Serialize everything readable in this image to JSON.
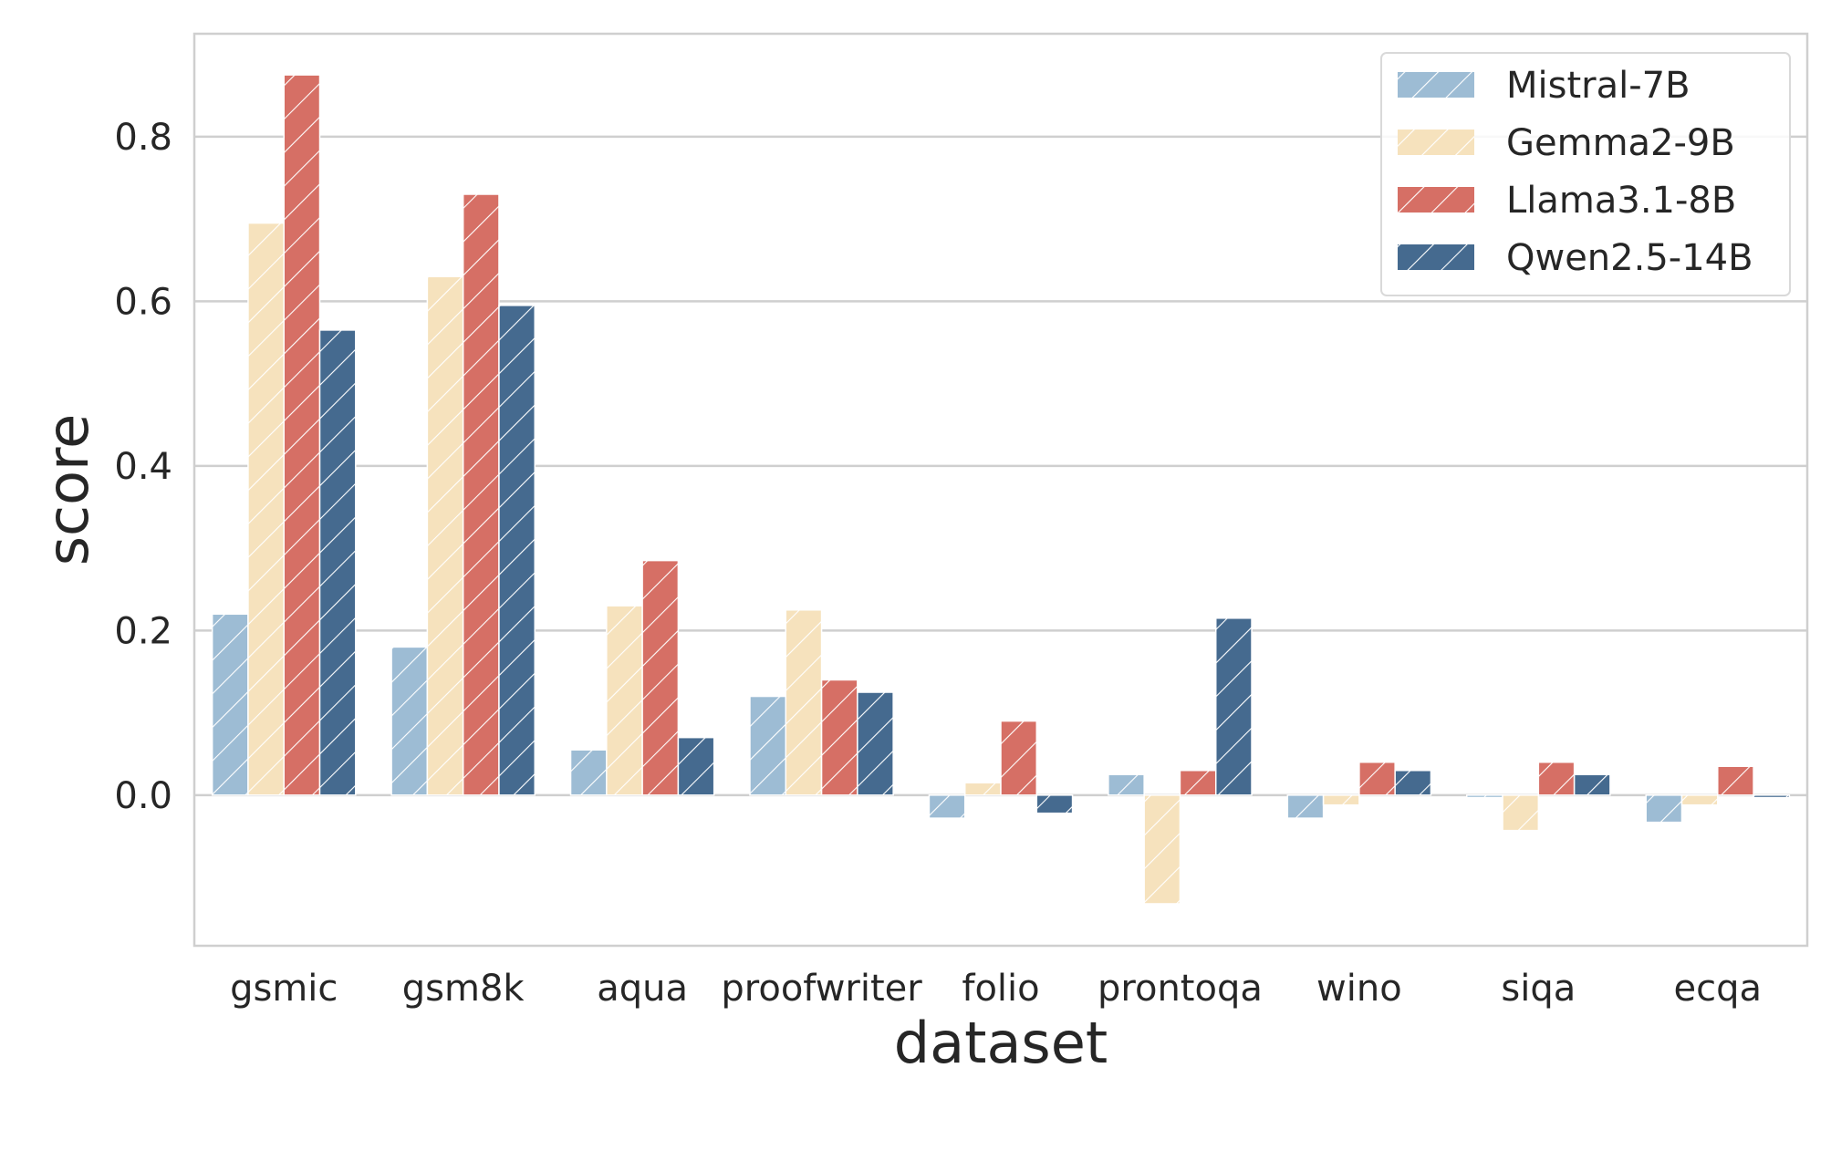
{
  "chart_data": {
    "type": "bar",
    "xlabel": "dataset",
    "ylabel": "score",
    "categories": [
      "gsmic",
      "gsm8k",
      "aqua",
      "proofwriter",
      "folio",
      "prontoqa",
      "wino",
      "siqa",
      "ecqa"
    ],
    "series": [
      {
        "name": "Mistral-7B",
        "color": "#9dbcd4",
        "values": [
          0.22,
          0.18,
          0.055,
          0.12,
          -0.028,
          0.025,
          -0.028,
          -0.003,
          -0.033
        ]
      },
      {
        "name": "Gemma2-9B",
        "color": "#f6e2bd",
        "values": [
          0.695,
          0.63,
          0.23,
          0.225,
          0.015,
          -0.132,
          -0.012,
          -0.043,
          -0.012
        ]
      },
      {
        "name": "Llama3.1-8B",
        "color": "#d66f65",
        "values": [
          0.875,
          0.73,
          0.285,
          0.14,
          0.09,
          0.03,
          0.04,
          0.04,
          0.035
        ]
      },
      {
        "name": "Qwen2.5-14B",
        "color": "#456a8f",
        "values": [
          0.565,
          0.595,
          0.07,
          0.125,
          -0.022,
          0.215,
          0.03,
          0.025,
          -0.003
        ]
      }
    ],
    "ylim": [
      -0.183,
      0.925
    ],
    "yticks": [
      0.0,
      0.2,
      0.4,
      0.6,
      0.8
    ],
    "ytick_labels": [
      "0.0",
      "0.2",
      "0.4",
      "0.6",
      "0.8"
    ],
    "grid": true,
    "hatch": "diagonal",
    "legend_position": "top-right"
  }
}
